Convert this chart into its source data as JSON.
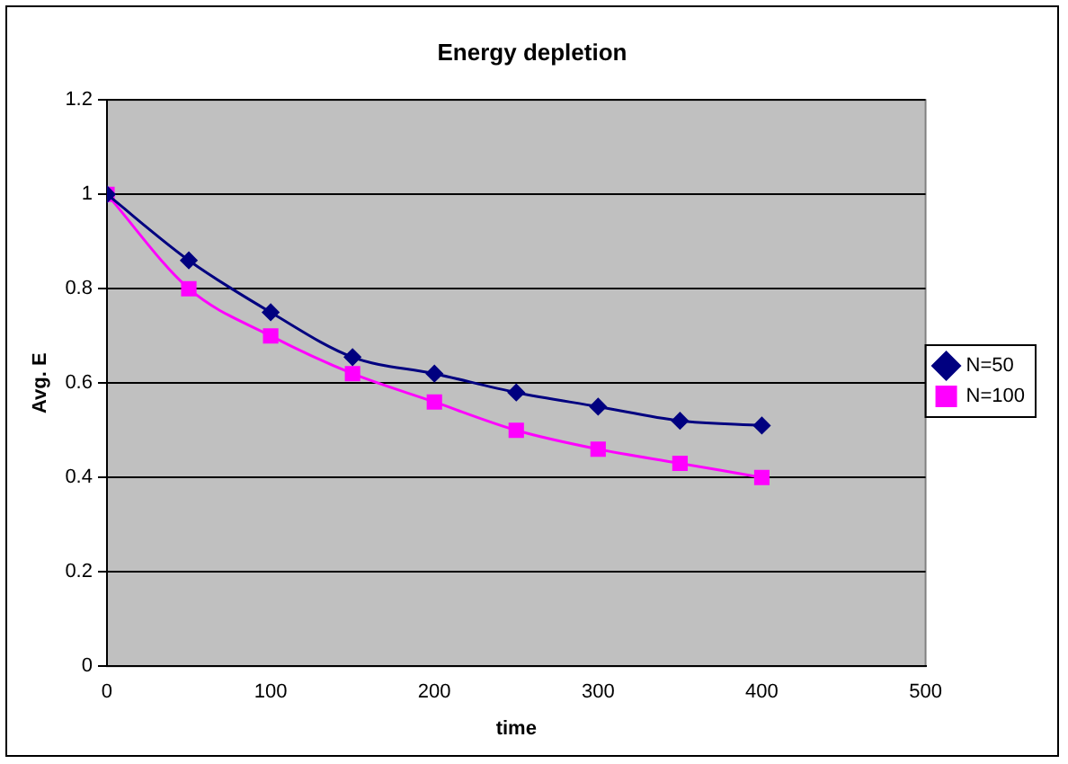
{
  "chart_data": {
    "type": "line",
    "title": "Energy depletion",
    "xlabel": "time",
    "ylabel": "Avg. E",
    "x": [
      0,
      50,
      100,
      150,
      200,
      250,
      300,
      350,
      400
    ],
    "series": [
      {
        "name": "N=50",
        "color": "#000080",
        "marker": "diamond",
        "values": [
          1,
          0.86,
          0.75,
          0.655,
          0.62,
          0.58,
          0.55,
          0.52,
          0.51
        ]
      },
      {
        "name": "N=100",
        "color": "#ff00ff",
        "marker": "square",
        "values": [
          1,
          0.8,
          0.7,
          0.62,
          0.56,
          0.5,
          0.46,
          0.43,
          0.4
        ]
      }
    ],
    "xlim": [
      0,
      500
    ],
    "xticks": [
      0,
      100,
      200,
      300,
      400,
      500
    ],
    "ylim": [
      0,
      1.2
    ],
    "yticks": [
      0,
      0.2,
      0.4,
      0.6,
      0.8,
      1,
      1.2
    ],
    "grid": "y",
    "legend": "right",
    "line_style": "solid"
  }
}
